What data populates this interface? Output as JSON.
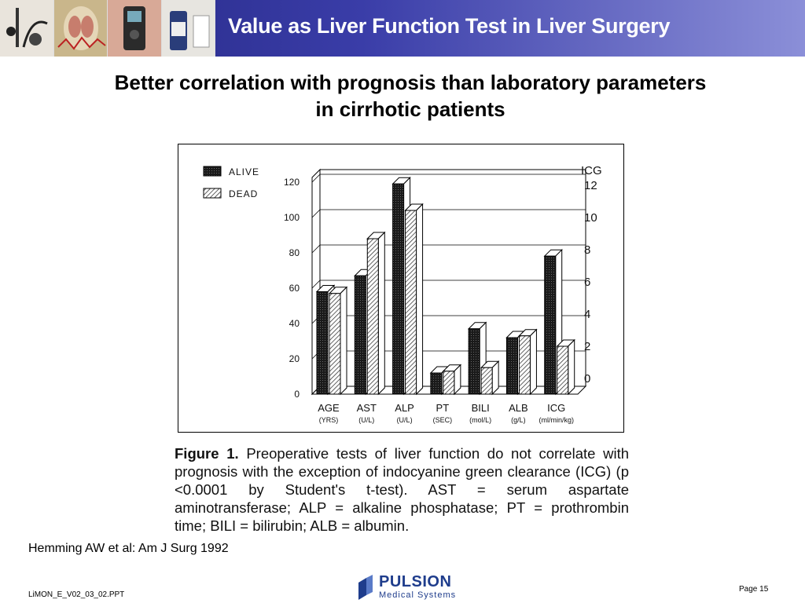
{
  "header": {
    "title": "Value as Liver Function Test in Liver Surgery",
    "thumbnails": [
      "equipment-photo",
      "anatomy-illustration",
      "monitor-device-photo",
      "medication-vials-photo"
    ]
  },
  "subtitle": {
    "line1": "Better correlation with prognosis than laboratory parameters",
    "line2": "in cirrhotic patients"
  },
  "chart_data": {
    "type": "bar",
    "categories": [
      "AGE",
      "AST",
      "ALP",
      "PT",
      "BILI",
      "ALB",
      "ICG"
    ],
    "category_units": [
      "(YRS)",
      "(U/L)",
      "(U/L)",
      "(SEC)",
      "(mol/L)",
      "(g/L)",
      "(ml/min/kg)"
    ],
    "series": [
      {
        "name": "ALIVE",
        "values": [
          58,
          67,
          119,
          12,
          37,
          32,
          7.6
        ]
      },
      {
        "name": "DEAD",
        "values": [
          57,
          88,
          104,
          13,
          15,
          33,
          2.0
        ]
      }
    ],
    "left_axis": {
      "ticks": [
        "0",
        "20",
        "40",
        "60",
        "80",
        "100",
        "120"
      ],
      "ylim": [
        0,
        120
      ]
    },
    "right_axis": {
      "title": "ICG",
      "ticks": [
        "0",
        "2",
        "4",
        "6",
        "8",
        "10",
        "12"
      ],
      "ylim": [
        0,
        12
      ],
      "applies_to": "ICG"
    },
    "legend": {
      "placement": "top-left"
    },
    "grid": true
  },
  "caption": {
    "label": "Figure 1.",
    "text": "Preoperative tests of liver function do not correlate with prognosis with the exception of indocyanine green clearance (ICG) (p <0.0001 by Student's t-test). AST = serum aspartate aminotransferase; ALP = alkaline phosphatase; PT = prothrombin time; BILI = bilirubin; ALB = albumin."
  },
  "citation": "Hemming AW et al: Am J Surg 1992",
  "footer": {
    "filename": "LiMON_E_V02_03_02.PPT",
    "page": "Page 15",
    "logo_name": "PULSION",
    "logo_sub": "Medical Systems"
  },
  "colors": {
    "header_dark": "#22247e",
    "header_light": "#8b8fd8",
    "logo_blue": "#1f3d8c"
  }
}
